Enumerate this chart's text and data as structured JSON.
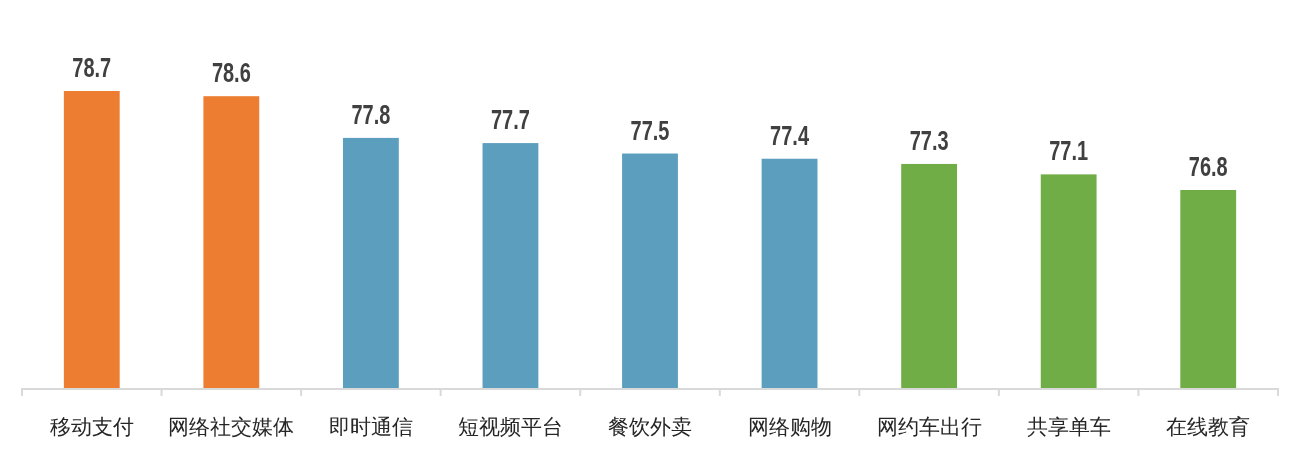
{
  "chart_data": {
    "type": "bar",
    "categories": [
      "移动支付",
      "网络社交媒体",
      "即时通信",
      "短视频平台",
      "餐饮外卖",
      "网络购物",
      "网约车出行",
      "共享单车",
      "在线教育"
    ],
    "values": [
      78.7,
      78.6,
      77.8,
      77.7,
      77.5,
      77.4,
      77.3,
      77.1,
      76.8
    ],
    "colors": [
      "#ed7d31",
      "#ed7d31",
      "#5b9ebd",
      "#5b9ebd",
      "#5b9ebd",
      "#5b9ebd",
      "#70ad47",
      "#70ad47",
      "#70ad47"
    ],
    "ylim": [
      73,
      78.7
    ],
    "data_labels": true,
    "tick_labels": "x"
  }
}
